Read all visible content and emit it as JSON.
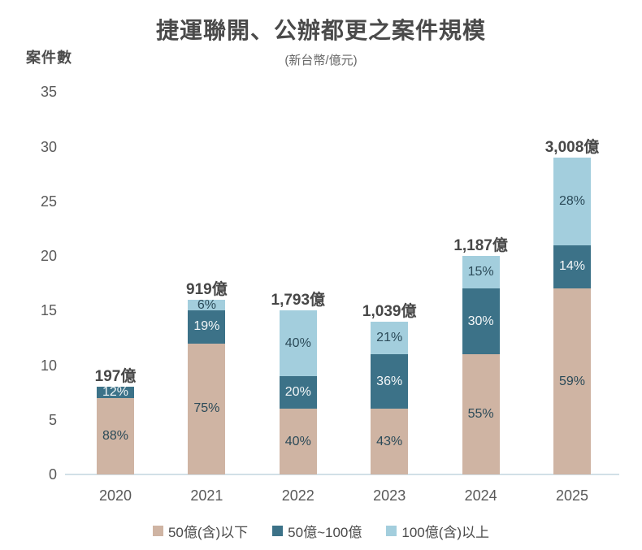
{
  "title": "捷運聯開、公辦都更之案件規模",
  "subtitle": "(新台幣/億元)",
  "y_axis_title": "案件數",
  "colors": {
    "under_50": "#cfb4a3",
    "between_50_100": "#3c7288",
    "over_100": "#a3cedd",
    "dark_label": "#2b4a58",
    "light_label": "#f4f7f8",
    "axis_line": "#d2e0e7",
    "text_dark": "#474747",
    "text_gray": "#595959"
  },
  "chart_data": {
    "type": "bar",
    "stacked": true,
    "title": "捷運聯開、公辦都更之案件規模",
    "subtitle": "(新台幣/億元)",
    "ylabel": "案件數",
    "xlabel": "",
    "ylim": [
      0,
      35
    ],
    "yticks": [
      0,
      5,
      10,
      15,
      20,
      25,
      30,
      35
    ],
    "grid": false,
    "legend_position": "bottom",
    "categories": [
      "2020",
      "2021",
      "2022",
      "2023",
      "2024",
      "2025"
    ],
    "bar_totals_cases": [
      8,
      16,
      15,
      14,
      20,
      29
    ],
    "total_value_labels": [
      "197億",
      "919億",
      "1,793億",
      "1,039億",
      "1,187億",
      "3,008億"
    ],
    "series": [
      {
        "name": "50億(含)以下",
        "color": "#cfb4a3",
        "values": [
          7,
          12,
          6,
          6,
          11,
          17
        ],
        "pct_labels": [
          "88%",
          "75%",
          "40%",
          "43%",
          "55%",
          "59%"
        ],
        "label_color": "#2b4a58"
      },
      {
        "name": "50億~100億",
        "color": "#3c7288",
        "values": [
          1,
          3,
          3,
          5,
          6,
          4
        ],
        "pct_labels": [
          "12%",
          "19%",
          "20%",
          "36%",
          "30%",
          "14%"
        ],
        "label_color": "#f4f7f8"
      },
      {
        "name": "100億(含)以上",
        "color": "#a3cedd",
        "values": [
          0,
          1,
          6,
          3,
          3,
          8
        ],
        "pct_labels": [
          "",
          "6%",
          "40%",
          "21%",
          "15%",
          "28%"
        ],
        "label_color": "#2b4a58"
      }
    ]
  }
}
